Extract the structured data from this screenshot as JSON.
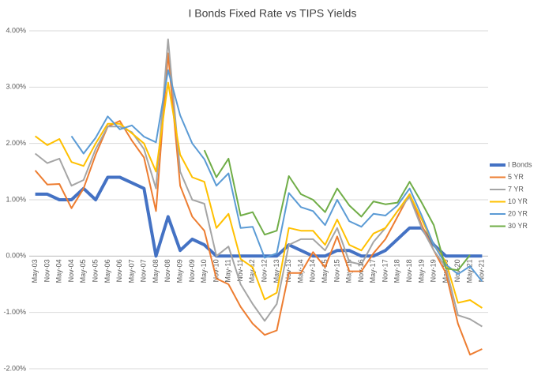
{
  "chart_data": {
    "type": "line",
    "title": "I Bonds Fixed Rate vs TIPS Yields",
    "categories": [
      "May-03",
      "Nov-03",
      "May-04",
      "Nov-04",
      "May-05",
      "Nov-05",
      "May-06",
      "Nov-06",
      "May-07",
      "Nov-07",
      "May-08",
      "Nov-08",
      "May-09",
      "Nov-09",
      "May-10",
      "Nov-10",
      "May-11",
      "Nov-11",
      "May-12",
      "Nov-12",
      "May-13",
      "Nov-13",
      "May-14",
      "Nov-14",
      "May-15",
      "Nov-15",
      "May-16",
      "Nov-16",
      "May-17",
      "Nov-17",
      "May-18",
      "Nov-18",
      "May-19",
      "Nov-19",
      "May-20",
      "Nov-20",
      "May-21",
      "Nov-21"
    ],
    "series": [
      {
        "name": "I Bonds",
        "color": "#4472c4",
        "values": [
          1.1,
          1.1,
          1.0,
          1.0,
          1.2,
          1.0,
          1.4,
          1.4,
          1.3,
          1.2,
          0,
          0.7,
          0.1,
          0.3,
          0.2,
          0,
          0,
          0,
          0,
          0,
          0,
          0.2,
          0.1,
          0,
          0,
          0.1,
          0.1,
          0,
          0,
          0.1,
          0.3,
          0.5,
          0.5,
          0.2,
          0,
          0,
          0,
          0
        ]
      },
      {
        "name": "5 YR",
        "color": "#ed7d31",
        "values": [
          1.52,
          1.27,
          1.28,
          0.85,
          1.2,
          1.8,
          2.3,
          2.4,
          2.05,
          1.75,
          0.8,
          3.6,
          1.25,
          0.7,
          0.45,
          -0.4,
          -0.5,
          -0.9,
          -1.2,
          -1.4,
          -1.32,
          -0.3,
          -0.3,
          0.07,
          -0.2,
          0.35,
          -0.27,
          -0.27,
          0.05,
          0.3,
          0.7,
          1.1,
          0.55,
          0.1,
          -0.3,
          -1.2,
          -1.75,
          -1.65
        ]
      },
      {
        "name": "7 YR",
        "color": "#a5a5a5",
        "values": [
          1.82,
          1.65,
          1.73,
          1.25,
          1.35,
          1.9,
          2.3,
          2.3,
          2.2,
          1.9,
          1.2,
          3.85,
          1.5,
          1.0,
          0.93,
          0.0,
          0.17,
          -0.5,
          -0.85,
          -1.15,
          -0.85,
          0.2,
          0.3,
          0.3,
          0.1,
          0.5,
          -0.1,
          -0.15,
          0.25,
          0.5,
          0.8,
          1.05,
          0.5,
          0.1,
          -0.2,
          -1.05,
          -1.12,
          -1.25
        ]
      },
      {
        "name": "10 YR",
        "color": "#ffc000",
        "values": [
          2.13,
          1.97,
          2.08,
          1.67,
          1.6,
          2.0,
          2.35,
          2.35,
          2.18,
          2.0,
          1.5,
          3.08,
          1.8,
          1.4,
          1.32,
          0.5,
          0.75,
          -0.05,
          -0.2,
          -0.77,
          -0.65,
          0.5,
          0.45,
          0.45,
          0.2,
          0.65,
          0.2,
          0.1,
          0.4,
          0.5,
          0.8,
          1.1,
          0.65,
          0.2,
          -0.1,
          -0.83,
          -0.78,
          -0.92
        ]
      },
      {
        "name": "20 YR",
        "color": "#5b9bd5",
        "values": [
          null,
          null,
          null,
          2.13,
          1.82,
          2.1,
          2.48,
          2.25,
          2.32,
          2.12,
          2.02,
          3.3,
          2.5,
          2.0,
          1.72,
          1.25,
          1.47,
          0.5,
          0.52,
          -0.03,
          0.05,
          1.12,
          0.87,
          0.8,
          0.55,
          1.0,
          0.62,
          0.52,
          0.75,
          0.72,
          0.9,
          1.2,
          0.72,
          0.2,
          -0.15,
          -0.32,
          -0.18,
          -0.45
        ]
      },
      {
        "name": "30 YR",
        "color": "#70ad47",
        "values": [
          null,
          null,
          null,
          null,
          null,
          null,
          null,
          null,
          null,
          null,
          null,
          null,
          null,
          null,
          1.88,
          1.4,
          1.73,
          0.72,
          0.78,
          0.38,
          0.45,
          1.42,
          1.1,
          1.0,
          0.78,
          1.2,
          0.9,
          0.7,
          0.97,
          0.92,
          0.95,
          1.32,
          0.95,
          0.55,
          -0.22,
          -0.25,
          0.02,
          null
        ]
      }
    ],
    "ylim": [
      -2,
      4
    ],
    "yticks": [
      {
        "value": -2,
        "label": "-2.00%"
      },
      {
        "value": -1,
        "label": "-1.00%"
      },
      {
        "value": 0,
        "label": "0.00%"
      },
      {
        "value": 1,
        "label": "1.00%"
      },
      {
        "value": 2,
        "label": "2.00%"
      },
      {
        "value": 3,
        "label": "3.00%"
      },
      {
        "value": 4,
        "label": "4.00%"
      }
    ],
    "grid": true,
    "legend": "right"
  }
}
